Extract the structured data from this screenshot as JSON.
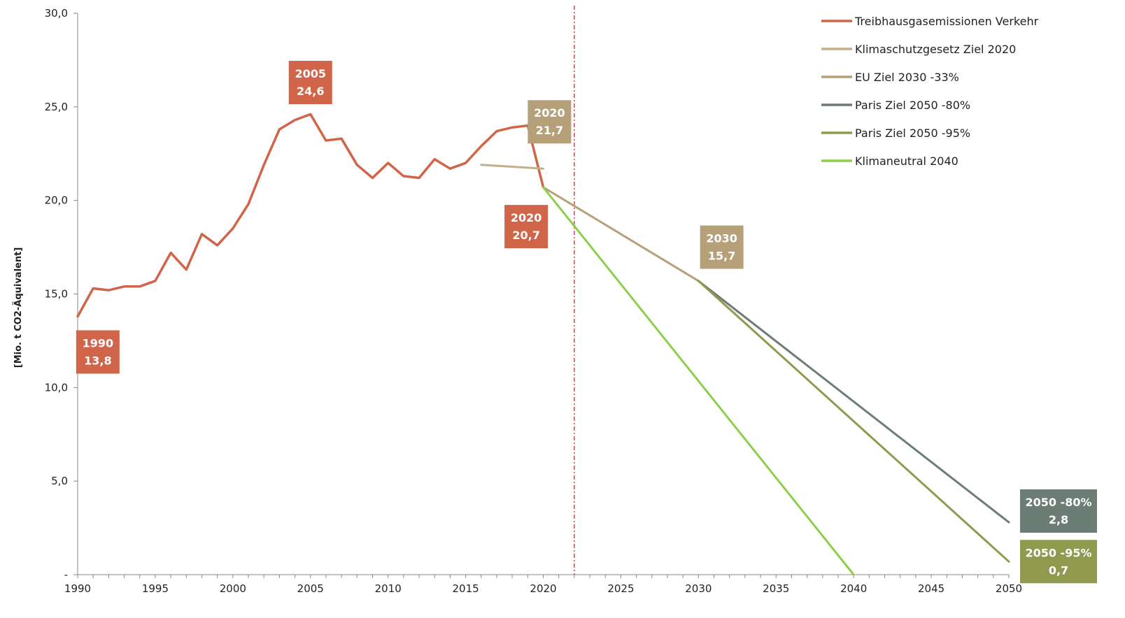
{
  "chart_data": {
    "type": "line",
    "title": "",
    "xlabel": "",
    "ylabel": "[Mio. t CO2-Äquivalent]",
    "xlim": [
      1990,
      2050
    ],
    "ylim": [
      0,
      30
    ],
    "x_ticks": [
      "1990",
      "1995",
      "2000",
      "2005",
      "2010",
      "2015",
      "2020",
      "2025",
      "2030",
      "2035",
      "2040",
      "2045",
      "2050"
    ],
    "x_tick_values": [
      1990,
      1995,
      2000,
      2005,
      2010,
      2015,
      2020,
      2025,
      2030,
      2035,
      2040,
      2045,
      2050
    ],
    "y_ticks": [
      "-",
      "5,0",
      "10,0",
      "15,0",
      "20,0",
      "25,0",
      "30,0"
    ],
    "y_tick_values": [
      0,
      5,
      10,
      15,
      20,
      25,
      30
    ],
    "grid": false,
    "legend_position": "top-right",
    "reference_line": {
      "x": 2022,
      "style": "dash-dot",
      "color": "#b02020"
    },
    "series": [
      {
        "name": "Treibhausgasemissionen Verkehr",
        "color": "#d0654a",
        "x": [
          1990,
          1991,
          1992,
          1993,
          1994,
          1995,
          1996,
          1997,
          1998,
          1999,
          2000,
          2001,
          2002,
          2003,
          2004,
          2005,
          2006,
          2007,
          2008,
          2009,
          2010,
          2011,
          2012,
          2013,
          2014,
          2015,
          2016,
          2017,
          2018,
          2019,
          2020
        ],
        "y": [
          13.8,
          15.3,
          15.2,
          15.4,
          15.4,
          15.7,
          17.2,
          16.3,
          18.2,
          17.6,
          18.5,
          19.8,
          21.9,
          23.8,
          24.3,
          24.6,
          23.2,
          23.3,
          21.9,
          21.2,
          22.0,
          21.3,
          21.2,
          22.2,
          21.7,
          22.0,
          22.9,
          23.7,
          23.9,
          24.0,
          20.7
        ]
      },
      {
        "name": "Klimaschutzgesetz Ziel 2020",
        "color": "#c3b08a",
        "x": [
          2016,
          2020
        ],
        "y": [
          21.9,
          21.7
        ]
      },
      {
        "name": "EU Ziel 2030 -33%",
        "color": "#b5a07a",
        "x": [
          2020,
          2030
        ],
        "y": [
          20.7,
          15.7
        ]
      },
      {
        "name": "Paris Ziel 2050 -80%",
        "color": "#6b7d75",
        "x": [
          2030,
          2050
        ],
        "y": [
          15.7,
          2.8
        ]
      },
      {
        "name": "Paris Ziel 2050 -95%",
        "color": "#8f9a4f",
        "x": [
          2030,
          2050
        ],
        "y": [
          15.7,
          0.7
        ]
      },
      {
        "name": "Klimaneutral 2040",
        "color": "#8ccf4b",
        "x": [
          2020,
          2040
        ],
        "y": [
          20.7,
          0.0
        ]
      }
    ],
    "annotations": [
      {
        "lines": [
          "1990",
          "13,8"
        ],
        "x": 1991.3,
        "y": 11.9,
        "color": "#d0654a"
      },
      {
        "lines": [
          "2005",
          "24,6"
        ],
        "x": 2005.0,
        "y": 26.3,
        "color": "#d0654a"
      },
      {
        "lines": [
          "2020",
          "21,7"
        ],
        "x": 2020.4,
        "y": 24.2,
        "color": "#b5a07a"
      },
      {
        "lines": [
          "2020",
          "20,7"
        ],
        "x": 2018.9,
        "y": 18.6,
        "color": "#d0654a"
      },
      {
        "lines": [
          "2030",
          "15,7"
        ],
        "x": 2031.5,
        "y": 17.5,
        "color": "#b5a07a"
      },
      {
        "lines": [
          "2050 -80%",
          "2,8"
        ],
        "x": 2053.2,
        "y": 3.4,
        "color": "#6b7d75"
      },
      {
        "lines": [
          "2050 -95%",
          "0,7"
        ],
        "x": 2053.2,
        "y": 0.7,
        "color": "#8f9a4f"
      }
    ]
  }
}
